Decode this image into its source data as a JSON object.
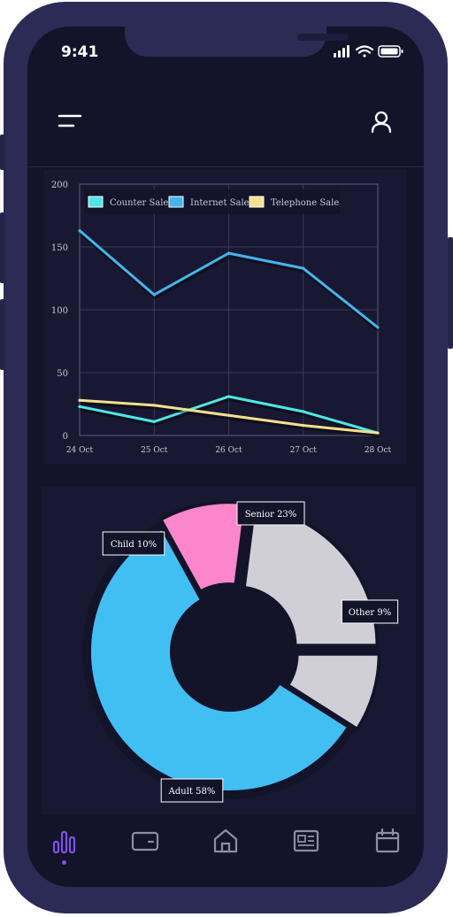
{
  "status_bar": {
    "time": "9:41"
  },
  "icons": {
    "menu": "menu-icon",
    "profile": "user-icon",
    "tabs": [
      "bar-chart-icon",
      "wallet-icon",
      "home-icon",
      "news-icon",
      "calendar-icon"
    ]
  },
  "colors": {
    "background": "#13132a",
    "card": "#181832",
    "active_tab": "#7d52e6",
    "inactive_tab": "#8d8da8"
  },
  "chart_data": [
    {
      "type": "line",
      "x": [
        "24 Oct",
        "25 Oct",
        "26 Oct",
        "27 Oct",
        "28 Oct"
      ],
      "ylim": [
        0,
        200
      ],
      "yticks": [
        0,
        50,
        100,
        150,
        200
      ],
      "grid": true,
      "legend": "top-left",
      "series": [
        {
          "name": "Counter Sale",
          "color": "#4de8e6",
          "values": [
            23,
            11,
            31,
            19,
            2
          ]
        },
        {
          "name": "Internet Sale",
          "color": "#45b4ea",
          "values": [
            163,
            112,
            145,
            133,
            86
          ]
        },
        {
          "name": "Telephone Sale",
          "color": "#f4e08f",
          "values": [
            28,
            24,
            16,
            8,
            2
          ]
        }
      ]
    },
    {
      "type": "pie",
      "donut": true,
      "slices": [
        {
          "label": "Other 9%",
          "value": 9,
          "color": "#cfcfd5"
        },
        {
          "label": "Adult 58%",
          "value": 58,
          "color": "#41bff2"
        },
        {
          "label": "Child 10%",
          "value": 10,
          "color": "#fb86cb"
        },
        {
          "label": "Senior 23%",
          "value": 23,
          "color": "#cfcfd5"
        }
      ]
    }
  ]
}
